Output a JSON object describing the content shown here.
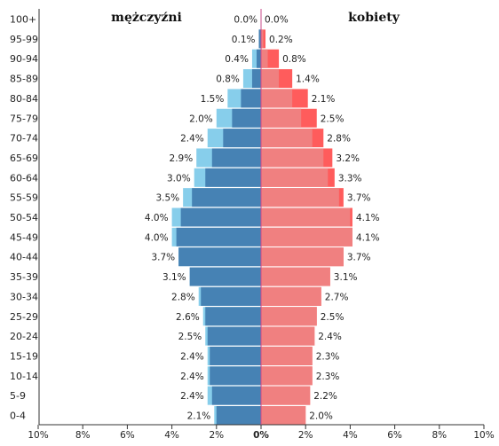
{
  "chart_data": {
    "type": "bar",
    "orientation": "horizontal",
    "categories": [
      "100+",
      "95-99",
      "90-94",
      "85-89",
      "80-84",
      "75-79",
      "70-74",
      "65-69",
      "60-64",
      "55-59",
      "50-54",
      "45-49",
      "40-44",
      "35-39",
      "30-34",
      "25-29",
      "20-24",
      "15-19",
      "10-14",
      "5-9",
      "0-4"
    ],
    "series": [
      {
        "name": "mężczyźni",
        "side": "left",
        "values": [
          0.0,
          0.1,
          0.4,
          0.8,
          1.5,
          2.0,
          2.4,
          2.9,
          3.0,
          3.5,
          4.0,
          4.0,
          3.7,
          3.1,
          2.8,
          2.6,
          2.5,
          2.4,
          2.4,
          2.4,
          2.1
        ],
        "labels": [
          "0.0%",
          "0.1%",
          "0.4%",
          "0.8%",
          "1.5%",
          "2.0%",
          "2.4%",
          "2.9%",
          "3.0%",
          "3.5%",
          "4.0%",
          "4.0%",
          "3.7%",
          "3.1%",
          "2.8%",
          "2.6%",
          "2.5%",
          "2.4%",
          "2.4%",
          "2.4%",
          "2.1%"
        ],
        "main_color": "#4682b4",
        "overlay_color": "#87ceeb"
      },
      {
        "name": "kobiety",
        "side": "right",
        "values": [
          0.0,
          0.2,
          0.8,
          1.4,
          2.1,
          2.5,
          2.8,
          3.2,
          3.3,
          3.7,
          4.1,
          4.1,
          3.7,
          3.1,
          2.7,
          2.5,
          2.4,
          2.3,
          2.3,
          2.2,
          2.0
        ],
        "labels": [
          "0.0%",
          "0.2%",
          "0.8%",
          "1.4%",
          "2.1%",
          "2.5%",
          "2.8%",
          "3.2%",
          "3.3%",
          "3.7%",
          "4.1%",
          "4.1%",
          "3.7%",
          "3.1%",
          "2.7%",
          "2.5%",
          "2.4%",
          "2.3%",
          "2.3%",
          "2.2%",
          "2.0%"
        ],
        "main_color": "#f08080",
        "overlay_color": "#ff5c5c"
      }
    ],
    "secondary_values": {
      "mężczyźni": [
        0.0,
        0.1,
        0.2,
        0.4,
        0.9,
        1.3,
        1.7,
        2.2,
        2.5,
        3.1,
        3.6,
        3.8,
        3.7,
        3.2,
        2.7,
        2.5,
        2.4,
        2.3,
        2.3,
        2.2,
        2.0
      ],
      "kobiety": [
        0.0,
        0.1,
        0.3,
        0.8,
        1.4,
        1.8,
        2.3,
        2.8,
        3.0,
        3.5,
        4.0,
        4.1,
        3.7,
        3.1,
        2.7,
        2.5,
        2.4,
        2.3,
        2.3,
        2.2,
        2.0
      ]
    },
    "x_ticks": [
      "10%",
      "8%",
      "6%",
      "4%",
      "2%",
      "0%",
      "2%",
      "4%",
      "6%",
      "8%",
      "10%"
    ],
    "xlim": [
      -10,
      10
    ],
    "grid": false,
    "title": "",
    "xlabel": "",
    "ylabel": ""
  }
}
